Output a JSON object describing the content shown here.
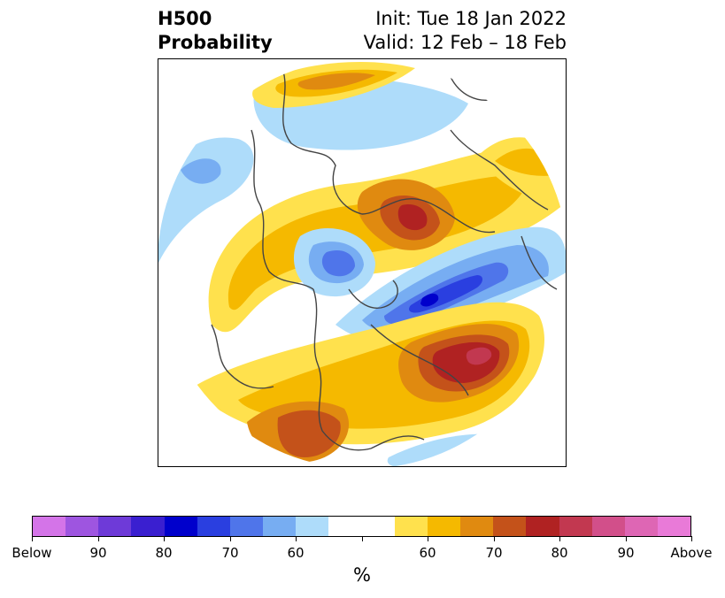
{
  "title": {
    "left_line1": "H500",
    "left_line2": "Probability",
    "right_line1": "Init: Tue 18 Jan 2022",
    "right_line2": "Valid: 12 Feb – 18 Feb"
  },
  "colorbar": {
    "unit": "%",
    "colors": [
      "#d474e8",
      "#9e55e0",
      "#6e3ad8",
      "#3a1fd0",
      "#0000cc",
      "#2a3fe0",
      "#4f75ea",
      "#77adf2",
      "#aedcfa",
      "#ffffff",
      "#ffffff",
      "#ffe14d",
      "#f5b900",
      "#e08a10",
      "#c4521a",
      "#b02222",
      "#c23850",
      "#d24f8a",
      "#de66b4",
      "#e97ad8"
    ],
    "tick_labels": [
      {
        "idx": 0,
        "text": "Below"
      },
      {
        "idx": 2,
        "text": "90"
      },
      {
        "idx": 4,
        "text": "80"
      },
      {
        "idx": 6,
        "text": "70"
      },
      {
        "idx": 8,
        "text": "60"
      },
      {
        "idx": 10,
        "text": ""
      },
      {
        "idx": 12,
        "text": "60"
      },
      {
        "idx": 14,
        "text": "70"
      },
      {
        "idx": 16,
        "text": "80"
      },
      {
        "idx": 18,
        "text": "90"
      },
      {
        "idx": 20,
        "text": "Above"
      }
    ]
  },
  "map": {
    "projection": "north-polar-stereographic",
    "colors": {
      "above_60": "#ffe14d",
      "above_65": "#f5b900",
      "above_70": "#e08a10",
      "above_75": "#c4521a",
      "above_80": "#b02222",
      "above_85": "#c23850",
      "above_90": "#d24f8a",
      "below_60": "#aedcfa",
      "below_65": "#77adf2",
      "below_70": "#4f75ea",
      "below_75": "#2a3fe0",
      "below_80": "#0000cc",
      "coastline": "#444444"
    }
  }
}
